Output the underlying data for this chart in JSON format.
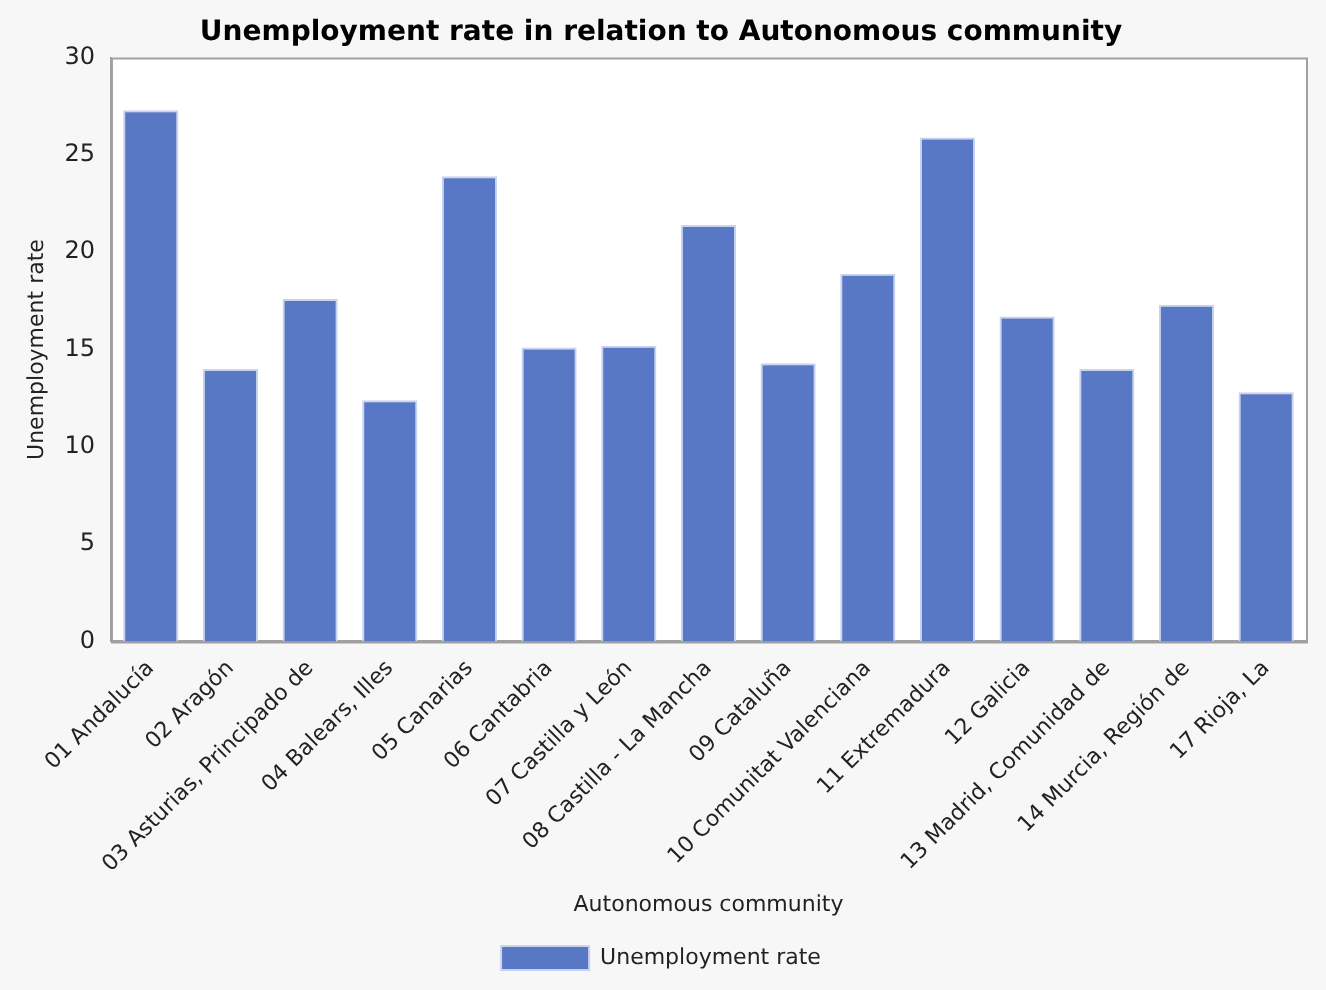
{
  "chart_data": {
    "type": "bar",
    "title": "Unemployment rate in relation to Autonomous community",
    "xlabel": "Autonomous community",
    "ylabel": "Unemployment rate",
    "categories": [
      "01 Andalucía",
      "02 Aragón",
      "03 Asturias, Principado de",
      "04 Balears, Illes",
      "05 Canarias",
      "06 Cantabria",
      "07 Castilla y León",
      "08 Castilla - La Mancha",
      "09 Cataluña",
      "10 Comunitat Valenciana",
      "11 Extremadura",
      "12 Galicia",
      "13 Madrid, Comunidad de",
      "14 Murcia, Región de",
      "17 Rioja, La"
    ],
    "series": [
      {
        "name": "Unemployment rate",
        "color": "#5877c4",
        "values": [
          27.3,
          14.0,
          17.6,
          12.4,
          23.9,
          15.1,
          15.2,
          21.4,
          14.3,
          18.9,
          25.9,
          16.7,
          14.0,
          17.3,
          12.8
        ]
      }
    ],
    "ylim": [
      0,
      30
    ],
    "yticks": [
      0,
      5,
      10,
      15,
      20,
      25,
      30
    ],
    "grid": false,
    "legend": "bottom"
  }
}
